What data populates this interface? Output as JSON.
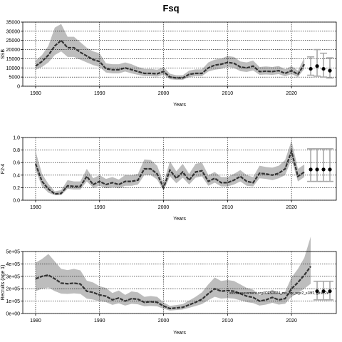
{
  "title": "Fsq",
  "colors": {
    "band": "#bdbdbd",
    "line": "#333333",
    "forecast": "#a8a8a8",
    "grid": "#000000",
    "axis": "#000000"
  },
  "chart_data": [
    {
      "type": "area",
      "xlabel": "Years",
      "ylabel": "SSB",
      "xlim": [
        1978,
        2027
      ],
      "ylim": [
        0,
        35000
      ],
      "xticks": [
        "1980",
        "1990",
        "2000",
        "2010",
        "2020"
      ],
      "yticks": [
        "0",
        "5000",
        "10000",
        "15000",
        "20000",
        "25000",
        "30000",
        "35000"
      ],
      "grid": true,
      "years": [
        1980,
        1981,
        1982,
        1983,
        1984,
        1985,
        1986,
        1987,
        1988,
        1989,
        1990,
        1991,
        1992,
        1993,
        1994,
        1995,
        1996,
        1997,
        1998,
        1999,
        2000,
        2001,
        2002,
        2003,
        2004,
        2005,
        2006,
        2007,
        2008,
        2009,
        2010,
        2011,
        2012,
        2013,
        2014,
        2015,
        2016,
        2017,
        2018,
        2019,
        2020,
        2021,
        2022
      ],
      "estimate": [
        11000,
        13500,
        17000,
        22000,
        25000,
        21000,
        21000,
        18500,
        16500,
        14500,
        13500,
        9500,
        9000,
        9000,
        10000,
        9000,
        8000,
        7000,
        7000,
        6800,
        8000,
        5000,
        4500,
        4500,
        6500,
        7000,
        7000,
        10000,
        11500,
        12000,
        13000,
        12500,
        10500,
        10000,
        11000,
        8000,
        8200,
        8000,
        8500,
        7000,
        8500,
        6500,
        12000
      ],
      "lower": [
        9000,
        10500,
        13000,
        17000,
        19000,
        16000,
        16000,
        14500,
        13000,
        11500,
        10500,
        7500,
        7000,
        7000,
        8000,
        7000,
        6200,
        5500,
        5500,
        5300,
        6200,
        3800,
        3500,
        3500,
        5000,
        5500,
        5500,
        8000,
        9000,
        9500,
        10500,
        10000,
        8200,
        7800,
        8600,
        6200,
        6400,
        6200,
        6600,
        5400,
        6600,
        5000,
        9500
      ],
      "upper": [
        14000,
        17000,
        22000,
        32000,
        34000,
        27000,
        27000,
        24000,
        21000,
        19000,
        18000,
        12500,
        12000,
        12000,
        13000,
        12000,
        10500,
        9500,
        9500,
        9000,
        10500,
        6800,
        6000,
        6000,
        8500,
        9200,
        9200,
        13000,
        14500,
        15000,
        16500,
        16000,
        13500,
        13000,
        14000,
        10500,
        10800,
        10500,
        11000,
        9300,
        11000,
        8500,
        15500
      ],
      "forecast": {
        "years": [
          2023,
          2024,
          2025,
          2026
        ],
        "points": [
          9500,
          11000,
          9500,
          8500
        ],
        "lower": [
          6000,
          5500,
          5000,
          4500
        ],
        "upper": [
          16000,
          20000,
          18000,
          15500
        ]
      }
    },
    {
      "type": "area",
      "xlabel": "Years",
      "ylabel": "F2-4",
      "xlim": [
        1978,
        2027
      ],
      "ylim": [
        0,
        1.0
      ],
      "xticks": [
        "1980",
        "1990",
        "2000",
        "2010",
        "2020"
      ],
      "yticks": [
        "0.0",
        "0.2",
        "0.4",
        "0.6",
        "0.8",
        "1.0"
      ],
      "grid": true,
      "years": [
        1980,
        1981,
        1982,
        1983,
        1984,
        1985,
        1986,
        1987,
        1988,
        1989,
        1990,
        1991,
        1992,
        1993,
        1994,
        1995,
        1996,
        1997,
        1998,
        1999,
        2000,
        2001,
        2002,
        2003,
        2004,
        2005,
        2006,
        2007,
        2008,
        2009,
        2010,
        2011,
        2012,
        2013,
        2014,
        2015,
        2016,
        2017,
        2018,
        2019,
        2020,
        2021,
        2022
      ],
      "estimate": [
        0.58,
        0.3,
        0.18,
        0.1,
        0.11,
        0.23,
        0.22,
        0.22,
        0.38,
        0.25,
        0.3,
        0.25,
        0.28,
        0.25,
        0.3,
        0.3,
        0.32,
        0.5,
        0.5,
        0.42,
        0.2,
        0.48,
        0.35,
        0.45,
        0.32,
        0.45,
        0.47,
        0.3,
        0.35,
        0.28,
        0.28,
        0.32,
        0.38,
        0.3,
        0.28,
        0.43,
        0.42,
        0.4,
        0.43,
        0.5,
        0.78,
        0.38,
        0.45
      ],
      "lower": [
        0.48,
        0.22,
        0.12,
        0.08,
        0.08,
        0.18,
        0.17,
        0.17,
        0.3,
        0.2,
        0.23,
        0.19,
        0.21,
        0.19,
        0.23,
        0.23,
        0.25,
        0.4,
        0.4,
        0.33,
        0.15,
        0.38,
        0.27,
        0.36,
        0.25,
        0.36,
        0.38,
        0.23,
        0.28,
        0.22,
        0.22,
        0.25,
        0.3,
        0.23,
        0.22,
        0.35,
        0.34,
        0.32,
        0.35,
        0.4,
        0.65,
        0.3,
        0.37
      ],
      "upper": [
        0.78,
        0.42,
        0.26,
        0.14,
        0.16,
        0.32,
        0.3,
        0.3,
        0.5,
        0.35,
        0.4,
        0.34,
        0.37,
        0.33,
        0.4,
        0.4,
        0.42,
        0.65,
        0.64,
        0.55,
        0.28,
        0.62,
        0.46,
        0.58,
        0.42,
        0.58,
        0.6,
        0.4,
        0.45,
        0.37,
        0.37,
        0.42,
        0.48,
        0.4,
        0.37,
        0.55,
        0.53,
        0.52,
        0.55,
        0.64,
        0.95,
        0.5,
        0.57
      ],
      "forecast": {
        "years": [
          2023,
          2024,
          2025,
          2026
        ],
        "points": [
          0.49,
          0.49,
          0.49,
          0.49
        ],
        "lower": [
          0.3,
          0.3,
          0.3,
          0.3
        ],
        "upper": [
          0.82,
          0.82,
          0.82,
          0.82
        ]
      }
    },
    {
      "type": "area",
      "xlabel": "Years",
      "ylabel": "Recruits (age 1)",
      "xlim": [
        1978,
        2027
      ],
      "ylim": [
        0,
        500000
      ],
      "xticks": [
        "1980",
        "1990",
        "2000",
        "2010",
        "2020"
      ],
      "yticks": [
        "0e+00",
        "1e+05",
        "2e+05",
        "3e+05",
        "4e+05",
        "5e+05"
      ],
      "grid": true,
      "annotation": "stockassessment.org/ICES2024_ms_bw_wgc2_s18f2, git:ec2e",
      "years": [
        1980,
        1981,
        1982,
        1983,
        1984,
        1985,
        1986,
        1987,
        1988,
        1989,
        1990,
        1991,
        1992,
        1993,
        1994,
        1995,
        1996,
        1997,
        1998,
        1999,
        2000,
        2001,
        2002,
        2003,
        2004,
        2005,
        2006,
        2007,
        2008,
        2009,
        2010,
        2011,
        2012,
        2013,
        2014,
        2015,
        2016,
        2017,
        2018,
        2019,
        2020,
        2021,
        2022,
        2023
      ],
      "estimate": [
        280000,
        300000,
        310000,
        280000,
        245000,
        240000,
        245000,
        238000,
        180000,
        170000,
        150000,
        140000,
        110000,
        125000,
        100000,
        120000,
        115000,
        90000,
        95000,
        90000,
        60000,
        40000,
        45000,
        50000,
        70000,
        90000,
        115000,
        160000,
        200000,
        180000,
        185000,
        180000,
        160000,
        140000,
        130000,
        100000,
        110000,
        130000,
        110000,
        120000,
        200000,
        250000,
        310000,
        380000
      ],
      "lower": [
        180000,
        200000,
        210000,
        180000,
        160000,
        158000,
        162000,
        158000,
        120000,
        112000,
        98000,
        92000,
        70000,
        82000,
        64000,
        78000,
        74000,
        58000,
        61000,
        58000,
        38000,
        24000,
        28000,
        32000,
        46000,
        60000,
        76000,
        108000,
        135000,
        120000,
        124000,
        120000,
        106000,
        92000,
        84000,
        64000,
        72000,
        86000,
        72000,
        78000,
        135000,
        165000,
        200000,
        240000
      ],
      "upper": [
        410000,
        440000,
        480000,
        420000,
        360000,
        350000,
        360000,
        348000,
        265000,
        250000,
        220000,
        206000,
        165000,
        185000,
        150000,
        178000,
        170000,
        134000,
        141000,
        134000,
        90000,
        62000,
        68000,
        76000,
        104000,
        134000,
        170000,
        235000,
        290000,
        262000,
        270000,
        262000,
        235000,
        206000,
        192000,
        150000,
        162000,
        192000,
        162000,
        176000,
        290000,
        360000,
        450000,
        620000
      ],
      "forecast": {
        "years": [
          2024,
          2025,
          2026
        ],
        "points": [
          180000,
          180000,
          180000
        ],
        "lower": [
          110000,
          110000,
          110000
        ],
        "upper": [
          260000,
          260000,
          260000
        ]
      }
    }
  ]
}
